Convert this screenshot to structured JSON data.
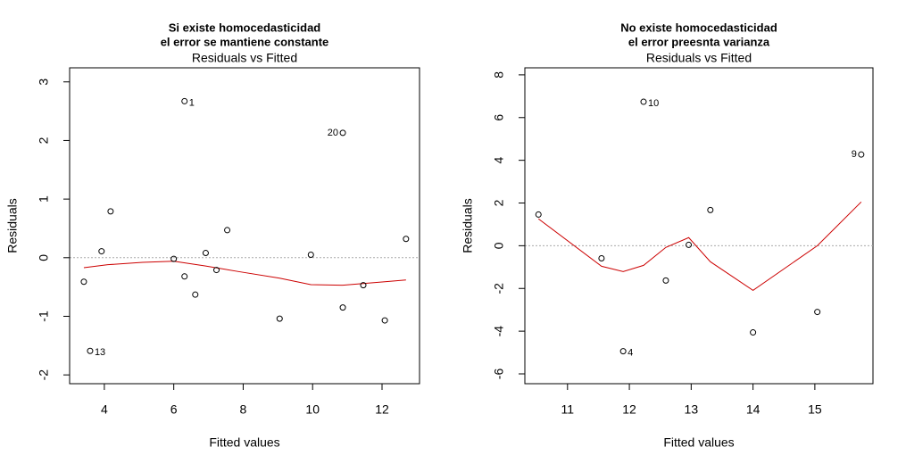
{
  "chart_data": [
    {
      "type": "scatter",
      "caption": [
        "Si existe homocedasticidad",
        "el error se mantiene constante"
      ],
      "caption_color": "#0000cc",
      "title": "Residuals vs Fitted",
      "xlabel": "Fitted values",
      "ylabel": "Residuals",
      "xlim": [
        3.0,
        13.08
      ],
      "ylim": [
        -2.15,
        3.24
      ],
      "xticks": [
        4,
        6,
        8,
        10,
        12
      ],
      "yticks": [
        -2,
        -1,
        0,
        1,
        2,
        3
      ],
      "x": [
        3.41,
        3.59,
        3.92,
        4.18,
        6.0,
        6.31,
        6.31,
        6.62,
        6.92,
        7.23,
        7.54,
        9.05,
        9.95,
        10.87,
        10.87,
        11.46,
        12.08,
        12.69
      ],
      "y": [
        -0.41,
        -1.59,
        0.11,
        0.79,
        -0.02,
        -0.32,
        2.67,
        -0.63,
        0.08,
        -0.21,
        0.47,
        -1.04,
        0.05,
        2.13,
        -0.85,
        -0.47,
        -1.07,
        0.32
      ],
      "point_labels": [
        null,
        "13",
        null,
        null,
        null,
        null,
        "1",
        null,
        null,
        null,
        null,
        null,
        null,
        "20",
        null,
        null,
        null,
        null
      ],
      "smooth_x": [
        3.41,
        4.1,
        5.1,
        6.0,
        6.9,
        7.9,
        9.05,
        9.95,
        10.87,
        12.08,
        12.69
      ],
      "smooth_y": [
        -0.17,
        -0.12,
        -0.08,
        -0.06,
        -0.14,
        -0.24,
        -0.35,
        -0.46,
        -0.47,
        -0.41,
        -0.38
      ],
      "smooth_color": "#cc0000",
      "hline": 0
    },
    {
      "type": "scatter",
      "caption": [
        "No existe homocedasticidad",
        "el error preesnta varianza"
      ],
      "caption_color": "#ee0000",
      "title": "Residuals vs Fitted",
      "xlabel": "Fitted values",
      "ylabel": "Residuals",
      "xlim": [
        10.31,
        15.94
      ],
      "ylim": [
        -6.46,
        8.33
      ],
      "xticks": [
        11,
        12,
        13,
        14,
        15
      ],
      "yticks": [
        -6,
        -4,
        -2,
        0,
        2,
        4,
        6,
        8
      ],
      "x": [
        10.53,
        11.55,
        11.9,
        12.23,
        12.59,
        12.96,
        13.31,
        14.0,
        15.04,
        15.75
      ],
      "y": [
        1.46,
        -0.59,
        -4.94,
        6.74,
        -1.63,
        0.04,
        1.67,
        -4.06,
        -3.1,
        4.27
      ],
      "point_labels": [
        null,
        null,
        "4",
        "10",
        null,
        null,
        null,
        null,
        null,
        "9"
      ],
      "smooth_x": [
        10.53,
        11.55,
        11.9,
        12.23,
        12.59,
        12.96,
        13.31,
        14.0,
        15.04,
        15.75
      ],
      "smooth_y": [
        1.26,
        -0.96,
        -1.21,
        -0.92,
        -0.08,
        0.38,
        -0.75,
        -2.09,
        0.0,
        2.05
      ],
      "smooth_color": "#cc0000",
      "hline": 0
    }
  ]
}
